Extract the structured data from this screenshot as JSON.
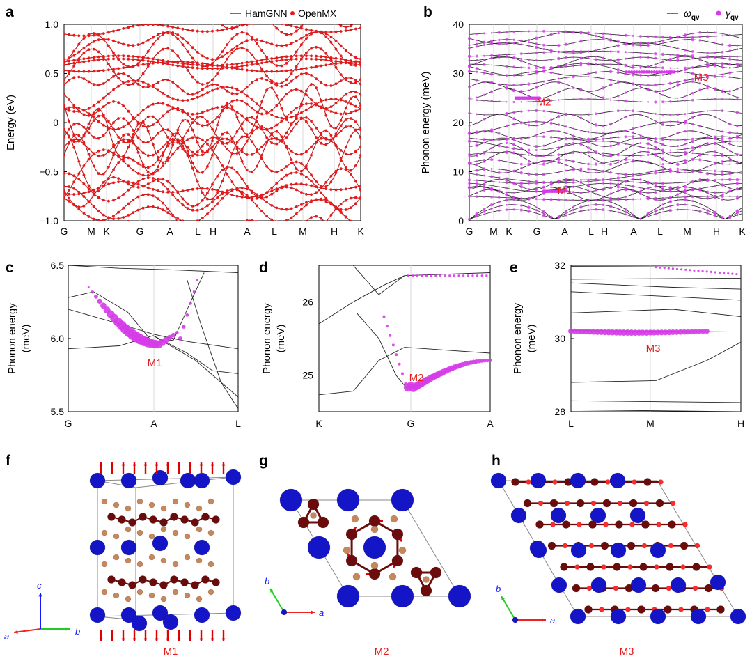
{
  "figure": {
    "panel_labels": [
      "a",
      "b",
      "c",
      "d",
      "e",
      "f",
      "g",
      "h"
    ],
    "bottom_captions": {
      "f": "M1",
      "g": "M2",
      "h": "M3"
    },
    "axis_letters": {
      "f": [
        "a",
        "b",
        "c"
      ],
      "g": [
        "a",
        "b"
      ],
      "h": [
        "a",
        "b"
      ]
    }
  },
  "colors": {
    "red_band": "#e8191b",
    "black_band": "#111111",
    "phonon_line": "#222222",
    "linewidth_magenta": "#d53be8",
    "annotation_red": "#e8191b",
    "atom_blue": "#1515c8",
    "atom_darkred": "#6b0b0b",
    "atom_tan": "#c8875a",
    "arrow_red": "#e00000",
    "axis_green": "#22cc22",
    "axis_blue": "#1515ff"
  },
  "chart_data": [
    {
      "id": "a",
      "type": "line",
      "ylabel": "Energy (eV)",
      "ylim": [
        -1.0,
        1.0
      ],
      "yticks": [
        "−1.0",
        "−0.5",
        "0",
        "0.5",
        "1.0"
      ],
      "ytick_values": [
        -1.0,
        -0.5,
        0,
        0.5,
        1.0
      ],
      "xticks": [
        "G",
        "M",
        "K",
        "G",
        "A",
        "L",
        "H",
        "A",
        "L",
        "M",
        "H",
        "K"
      ],
      "legend": [
        {
          "name": "HamGNN",
          "style": "line"
        },
        {
          "name": "OpenMX",
          "style": "dot"
        }
      ],
      "legend_position": "top-right",
      "series": [
        {
          "name": "HamGNN",
          "values": [
            -0.95,
            -0.6,
            -0.3,
            0.05,
            0.25,
            0.55,
            0.62,
            0.85
          ]
        },
        {
          "name": "OpenMX",
          "values": [
            -0.95,
            -0.6,
            -0.3,
            0.05,
            0.25,
            0.55,
            0.62,
            0.85
          ]
        }
      ]
    },
    {
      "id": "b",
      "type": "line",
      "ylabel": "Phonon energy (meV)",
      "ylim": [
        0,
        40
      ],
      "yticks": [
        "0",
        "10",
        "20",
        "30",
        "40"
      ],
      "ytick_values": [
        0,
        10,
        20,
        30,
        40
      ],
      "xticks": [
        "G",
        "M",
        "K",
        "G",
        "A",
        "L",
        "H",
        "A",
        "L",
        "M",
        "H",
        "K"
      ],
      "legend": [
        {
          "name": "ω",
          "sub": "qν",
          "style": "line"
        },
        {
          "name": "γ",
          "sub": "qν",
          "style": "dot"
        }
      ],
      "legend_position": "top-right",
      "annotations": [
        {
          "text": "M1",
          "x": "A",
          "y": 5.5
        },
        {
          "text": "M2",
          "x": "G",
          "y": 23.5
        },
        {
          "text": "M3",
          "x": "M",
          "y": 28.5
        }
      ]
    },
    {
      "id": "c",
      "type": "line",
      "ylabel": [
        "Phonon energy",
        "(meV)"
      ],
      "ylim": [
        5.5,
        6.5
      ],
      "yticks": [
        "5.5",
        "6.0",
        "6.5"
      ],
      "ytick_values": [
        5.5,
        6.0,
        6.5
      ],
      "xticks": [
        "G",
        "A",
        "L"
      ],
      "annotations": [
        {
          "text": "M1",
          "x": "A",
          "y": 5.88
        }
      ],
      "minimum": {
        "x": "A",
        "y": 5.96
      }
    },
    {
      "id": "d",
      "type": "line",
      "ylabel": [
        "Phonon energy",
        "(meV)"
      ],
      "ylim": [
        24.5,
        26.5
      ],
      "yticks": [
        "25",
        "26"
      ],
      "ytick_values": [
        25,
        26
      ],
      "xticks": [
        "K",
        "G",
        "A"
      ],
      "annotations": [
        {
          "text": "M2",
          "x": "G",
          "y": 24.95
        }
      ],
      "minimum": {
        "x": "G",
        "y": 24.78
      }
    },
    {
      "id": "e",
      "type": "line",
      "ylabel": [
        "Phonon energy",
        "(meV)"
      ],
      "ylim": [
        28,
        32
      ],
      "yticks": [
        "28",
        "30",
        "32"
      ],
      "ytick_values": [
        28,
        30,
        32
      ],
      "xticks": [
        "L",
        "M",
        "H"
      ],
      "annotations": [
        {
          "text": "M3",
          "x": "M",
          "y": 29.7
        }
      ],
      "flat_band": {
        "y": 30.2
      }
    }
  ]
}
